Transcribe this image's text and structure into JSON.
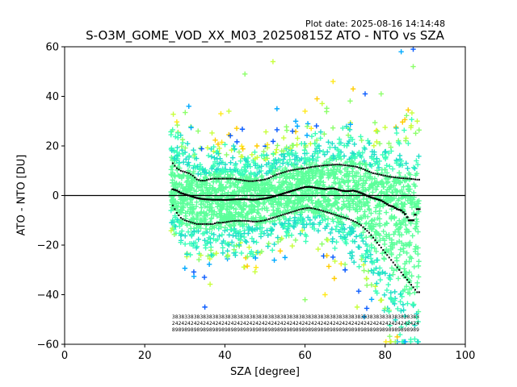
{
  "header": {
    "plot_date": "Plot date: 2025-08-16 14:14:48",
    "title": "S-O3M_GOME_VOD_XX_M03_20250815Z ATO - NTO vs SZA"
  },
  "chart_data": {
    "type": "scatter",
    "title": "S-O3M_GOME_VOD_XX_M03_20250815Z ATO - NTO vs SZA",
    "xlabel": "SZA [degree]",
    "ylabel": "ATO - NTO [DU]",
    "xlim": [
      0,
      100
    ],
    "ylim": [
      -60,
      60
    ],
    "xticks": [
      0,
      20,
      40,
      60,
      80,
      100
    ],
    "yticks": [
      -60,
      -40,
      -20,
      0,
      20,
      40,
      60
    ],
    "grid": false,
    "zero_line": 0,
    "colors": {
      "core": "#5cff9a",
      "spread": [
        "#1fe0c8",
        "#3dffb9",
        "#8cff6a",
        "#c8ff3c",
        "#ffe81a",
        "#ffcc00",
        "#00aaff",
        "#0a5cff"
      ],
      "line": "#000000"
    },
    "sza": [
      27,
      28,
      29,
      30,
      31,
      32,
      33,
      34,
      35,
      36,
      37,
      38,
      39,
      40,
      41,
      42,
      43,
      44,
      45,
      46,
      47,
      48,
      49,
      50,
      51,
      52,
      53,
      54,
      55,
      56,
      57,
      58,
      59,
      60,
      61,
      62,
      63,
      64,
      65,
      66,
      67,
      68,
      69,
      70,
      71,
      72,
      73,
      74,
      75,
      76,
      77,
      78,
      79,
      80,
      81,
      82,
      83,
      84,
      85,
      86,
      87,
      88
    ],
    "mean": [
      2.5,
      2,
      1,
      0.5,
      0,
      -0.5,
      -1,
      -1.3,
      -1.5,
      -1.6,
      -1.7,
      -1.7,
      -1.7,
      -1.8,
      -1.7,
      -1.6,
      -1.5,
      -1.5,
      -1.5,
      -1.6,
      -1.7,
      -1.6,
      -1.4,
      -1.2,
      -0.9,
      -0.5,
      0,
      0.5,
      1,
      1.5,
      2,
      2.5,
      3,
      3.4,
      3.5,
      3.3,
      3,
      2.8,
      2.6,
      2.8,
      2.9,
      2.5,
      2,
      1.8,
      1.8,
      2,
      1.6,
      1,
      0.3,
      -0.5,
      -1,
      -1.5,
      -2,
      -3,
      -4,
      -4.5,
      -5.5,
      -6,
      -7.5,
      -10,
      -10,
      -5.5
    ],
    "upper": [
      13,
      11,
      10,
      9.5,
      9,
      8,
      6.5,
      6,
      6,
      6.5,
      6.8,
      6.8,
      6.8,
      6.8,
      6.8,
      6.8,
      6.5,
      6.3,
      6,
      5.8,
      5.8,
      6,
      6.2,
      6.5,
      7,
      7.8,
      8.5,
      9,
      9.5,
      10,
      10.3,
      10.6,
      10.8,
      11,
      11.3,
      11.6,
      11.8,
      12,
      12.2,
      12.3,
      12.4,
      12.5,
      12.4,
      12.2,
      12,
      11.8,
      11.5,
      11,
      10.3,
      9.6,
      9,
      8.7,
      8.3,
      8,
      7.6,
      7.4,
      7.2,
      7,
      6.9,
      6.8,
      6.6,
      6.4
    ],
    "lower": [
      -4,
      -7,
      -9,
      -10,
      -10.5,
      -11,
      -11.5,
      -11.5,
      -11.5,
      -11.5,
      -11.5,
      -11,
      -11,
      -10.8,
      -10.5,
      -10.3,
      -10.2,
      -10.2,
      -10.2,
      -10.3,
      -10.5,
      -10.5,
      -10.3,
      -10,
      -9.5,
      -9,
      -8.5,
      -8,
      -7.5,
      -7,
      -6.5,
      -6,
      -5.5,
      -5.2,
      -5,
      -5.2,
      -5.6,
      -6,
      -6.5,
      -7,
      -7.5,
      -8,
      -8.5,
      -9,
      -9.5,
      -10.2,
      -11,
      -12,
      -13.5,
      -15,
      -17,
      -19,
      -21,
      -23,
      -25,
      -27,
      -29,
      -31,
      -33,
      -35,
      -37,
      -39
    ],
    "outliers": [
      {
        "x": 45,
        "y": 49
      },
      {
        "x": 52,
        "y": 54
      },
      {
        "x": 67,
        "y": 46
      },
      {
        "x": 72,
        "y": 43
      },
      {
        "x": 84,
        "y": 58
      },
      {
        "x": 87,
        "y": 59
      },
      {
        "x": 87,
        "y": 52
      },
      {
        "x": 88,
        "y": 30
      },
      {
        "x": 60,
        "y": 34
      },
      {
        "x": 63,
        "y": 39
      },
      {
        "x": 31,
        "y": 36
      },
      {
        "x": 35,
        "y": -45
      },
      {
        "x": 60,
        "y": -42
      },
      {
        "x": 73,
        "y": -45
      },
      {
        "x": 65,
        "y": -40
      },
      {
        "x": 83,
        "y": -57
      },
      {
        "x": 53,
        "y": 35
      },
      {
        "x": 75,
        "y": 41
      },
      {
        "x": 79,
        "y": 41
      },
      {
        "x": 41,
        "y": 34
      },
      {
        "x": 39,
        "y": 33
      },
      {
        "x": 48,
        "y": 20
      },
      {
        "x": 55,
        "y": -25
      },
      {
        "x": 70,
        "y": -30
      }
    ],
    "count_rows": [
      "38383383838383838383838383838383838383838383838383838383838383838383838383838383",
      "24242424242424242424242424242424242424242424242424242424242424242424242424242424",
      "89898989898989898989898989898989898989898989898989898989898989898989898989898989"
    ]
  }
}
